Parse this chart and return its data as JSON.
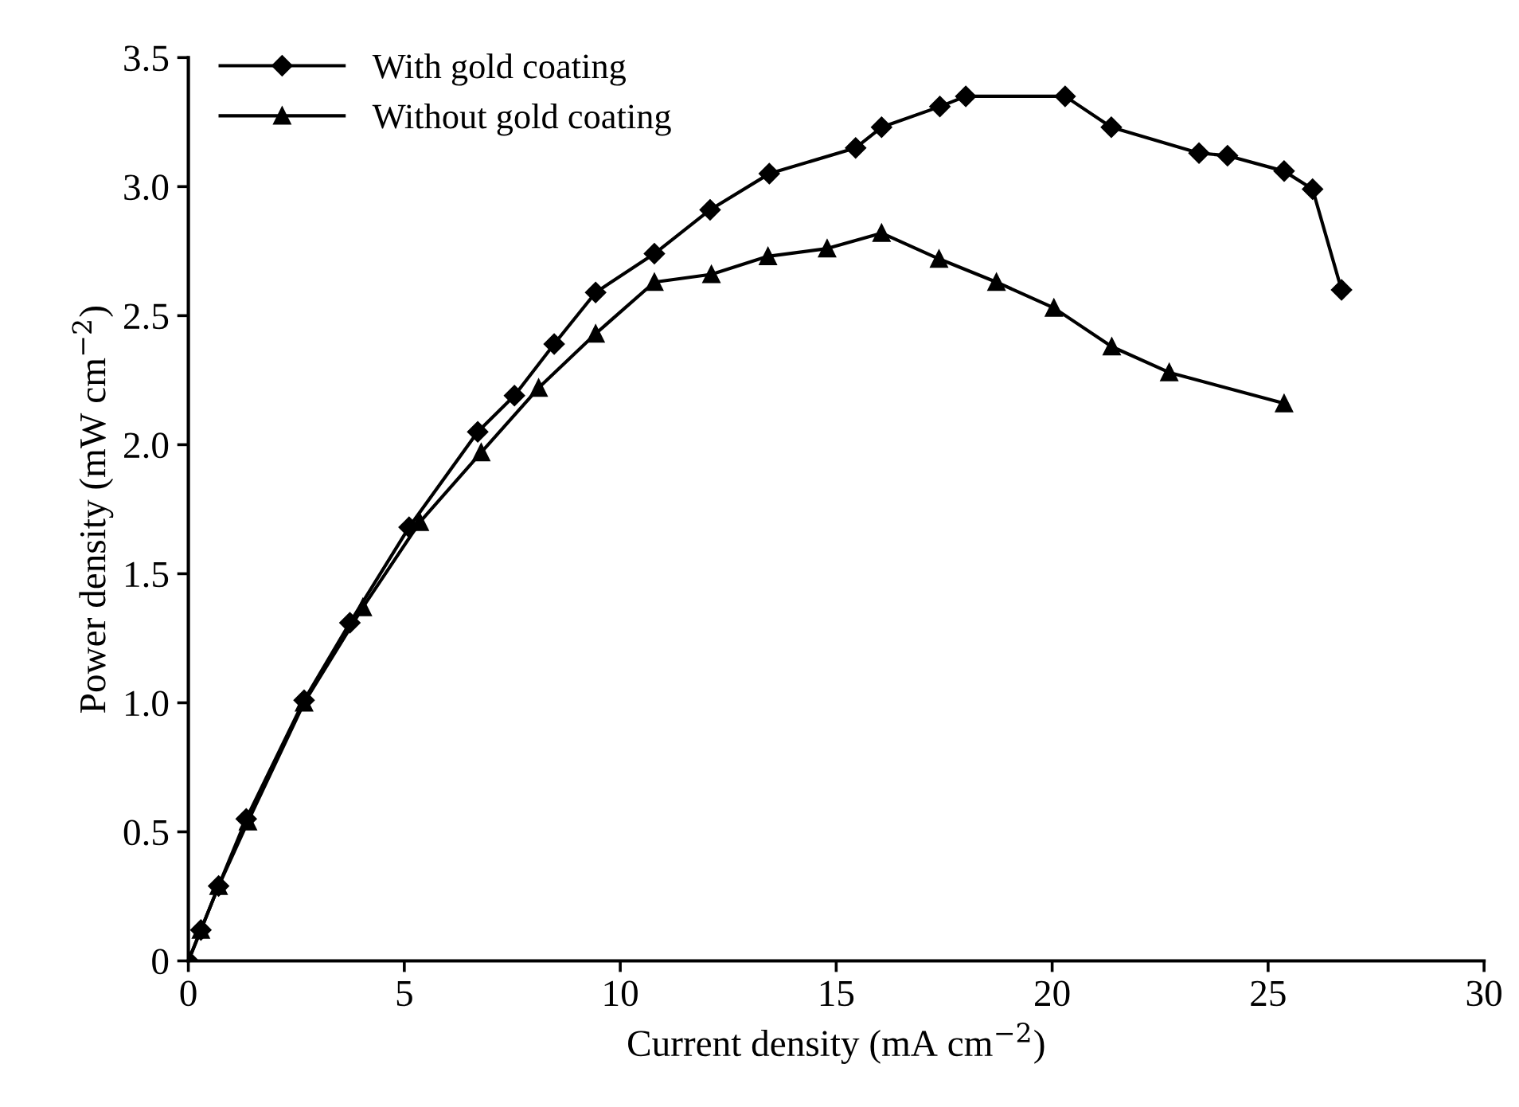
{
  "chart_data": {
    "type": "line",
    "xlabel": "Current density (mA cm$^{−2}$)",
    "ylabel": "Power density (mW cm$^{−2}$)",
    "xlim": [
      0,
      30
    ],
    "xticks": [
      0,
      5,
      10,
      15,
      20,
      25,
      30
    ],
    "ylim": [
      0,
      3.5
    ],
    "yticks": [
      0,
      0.5,
      {
        "value": 1,
        "label": "1.0"
      },
      1.5,
      {
        "value": 2,
        "label": "2.0"
      },
      2.5,
      {
        "value": 3,
        "label": "3.0"
      },
      3.5
    ],
    "grid": false,
    "legend": "top left",
    "line_style": "solid",
    "series": [
      {
        "name": "With gold coating",
        "color": "#000000",
        "marker": "diamond",
        "x": [
          0,
          0.29,
          0.7,
          1.34,
          2.68,
          3.74,
          5.11,
          6.7,
          7.55,
          8.47,
          9.43,
          10.79,
          12.08,
          13.45,
          15.45,
          16.05,
          17.4,
          18.0,
          20.3,
          21.37,
          23.4,
          24.06,
          25.37,
          26.03,
          26.7
        ],
        "values": [
          0,
          0.12,
          0.29,
          0.55,
          1.01,
          1.31,
          1.68,
          2.05,
          2.19,
          2.39,
          2.59,
          2.74,
          2.91,
          3.05,
          3.15,
          3.23,
          3.31,
          3.35,
          3.35,
          3.23,
          3.13,
          3.12,
          3.06,
          2.99,
          2.6
        ]
      },
      {
        "name": "Without gold coating",
        "color": "#000000",
        "marker": "triangle",
        "x": [
          0,
          0.29,
          0.7,
          1.38,
          2.68,
          4.04,
          5.36,
          6.78,
          8.11,
          9.43,
          10.79,
          12.11,
          13.42,
          14.79,
          16.05,
          17.38,
          18.71,
          20.04,
          21.38,
          22.71,
          25.37
        ],
        "values": [
          0,
          0.12,
          0.29,
          0.54,
          1.0,
          1.37,
          1.7,
          1.97,
          2.22,
          2.43,
          2.63,
          2.66,
          2.73,
          2.76,
          2.82,
          2.72,
          2.63,
          2.53,
          2.38,
          2.28,
          2.16
        ]
      }
    ]
  }
}
